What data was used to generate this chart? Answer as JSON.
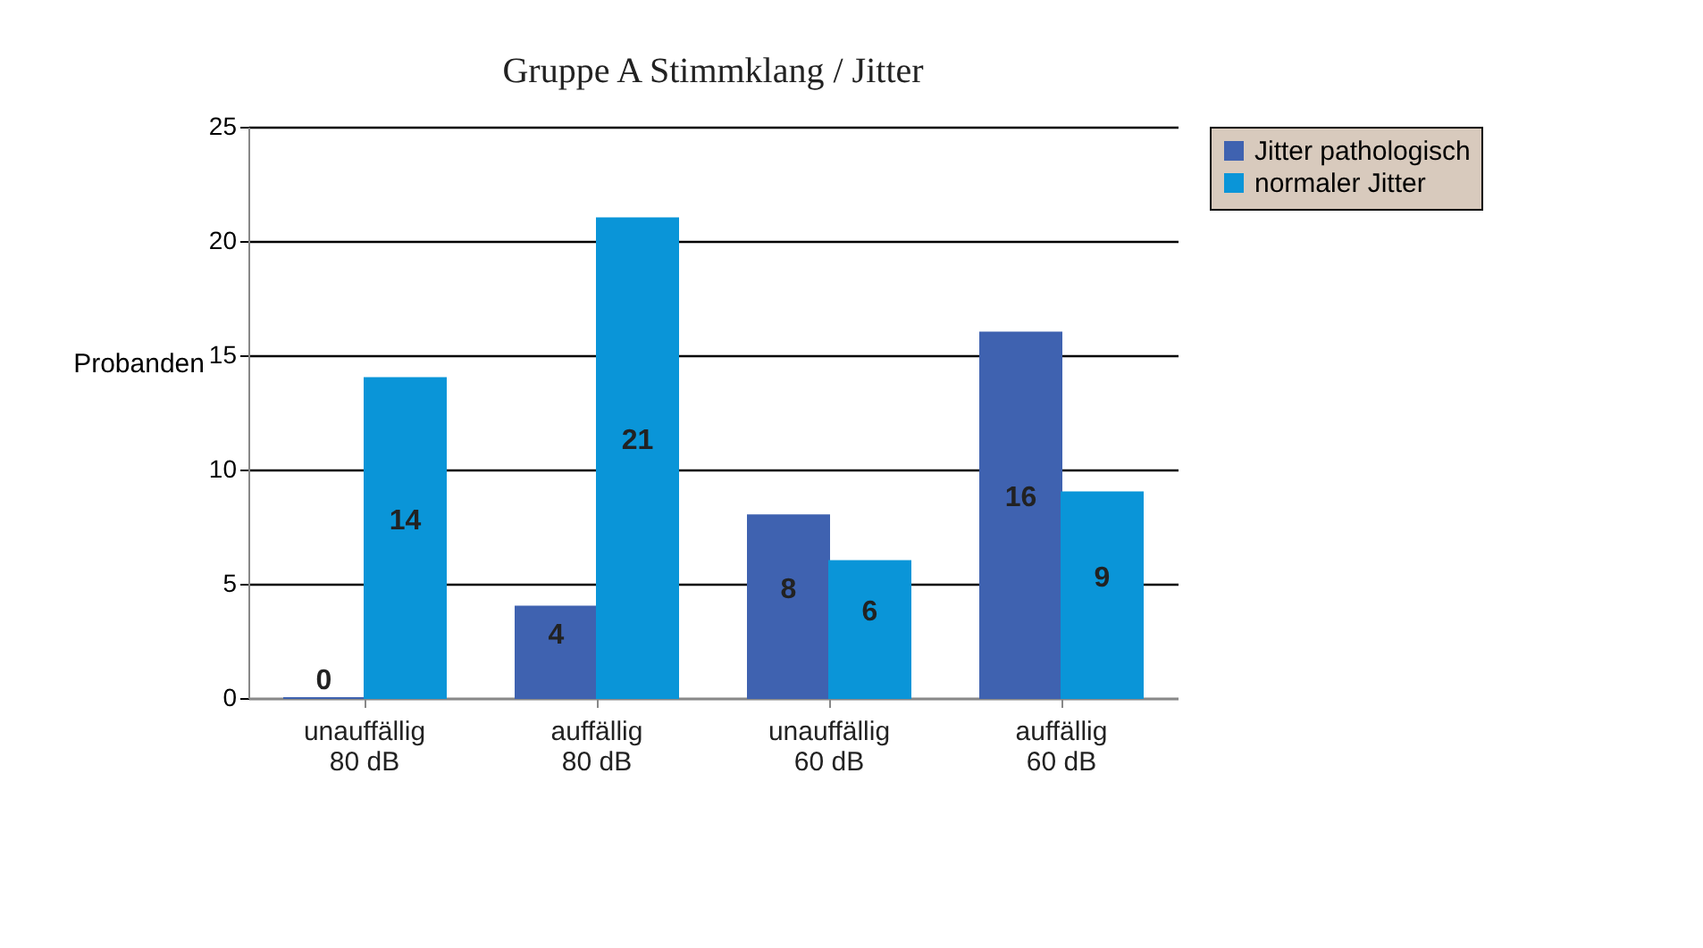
{
  "chart_data": {
    "type": "bar",
    "title": "Gruppe A Stimmklang / Jitter",
    "ylabel": "Probanden",
    "categories": [
      "unauffällig\n80 dB",
      "auffällig\n80 dB",
      "unauffällig\n60 dB",
      "auffällig\n60 dB"
    ],
    "series": [
      {
        "name": "Jitter pathologisch",
        "color": "#3f62b0",
        "values": [
          0,
          4,
          8,
          16
        ]
      },
      {
        "name": "normaler Jitter",
        "color": "#0a95d8",
        "values": [
          14,
          21,
          6,
          9
        ]
      }
    ],
    "ylim": [
      0,
      25
    ],
    "yticks": [
      0,
      5,
      10,
      15,
      20,
      25
    ],
    "grid": "y",
    "legend": "right",
    "data_labels": true
  }
}
